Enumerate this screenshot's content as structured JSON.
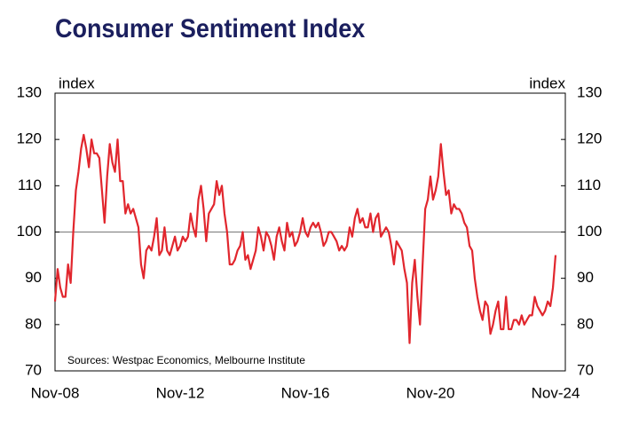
{
  "chart_data": {
    "type": "line",
    "title": "Consumer Sentiment Index",
    "ylabel": "index",
    "y2label": "index",
    "annotation": "Sources: Westpac Economics, Melbourne Institute",
    "categories": [
      "Nov-08",
      null,
      null,
      null,
      null,
      null,
      null,
      null,
      null,
      null,
      null,
      null,
      null,
      null,
      null,
      null,
      null,
      null,
      null,
      null,
      null,
      null,
      null,
      null,
      null,
      null,
      null,
      null,
      null,
      null,
      null,
      null,
      null,
      null,
      null,
      null,
      null,
      null,
      null,
      null,
      null,
      null,
      null,
      null,
      null,
      null,
      null,
      null,
      "Nov-12",
      null,
      null,
      null,
      null,
      null,
      null,
      null,
      null,
      null,
      null,
      null,
      null,
      null,
      null,
      null,
      null,
      null,
      null,
      null,
      null,
      null,
      null,
      null,
      null,
      null,
      null,
      null,
      null,
      null,
      null,
      null,
      null,
      null,
      null,
      null,
      null,
      null,
      null,
      null,
      null,
      null,
      null,
      null,
      null,
      null,
      null,
      null,
      "Nov-16",
      null,
      null,
      null,
      null,
      null,
      null,
      null,
      null,
      null,
      null,
      null,
      null,
      null,
      null,
      null,
      null,
      null,
      null,
      null,
      null,
      null,
      null,
      null,
      null,
      null,
      null,
      null,
      null,
      null,
      null,
      null,
      null,
      null,
      null,
      null,
      null,
      null,
      null,
      null,
      null,
      null,
      null,
      null,
      null,
      null,
      null,
      null,
      "Nov-20",
      null,
      null,
      null,
      null,
      null,
      null,
      null,
      null,
      null,
      null,
      null,
      null,
      null,
      null,
      null,
      null,
      null,
      null,
      null,
      null,
      null,
      null,
      null,
      null,
      null,
      null,
      null,
      null,
      null,
      null,
      null,
      null,
      null,
      null,
      null,
      null,
      null,
      null,
      null,
      null,
      null,
      null,
      null,
      null,
      null,
      null,
      null,
      "Nov-24"
    ],
    "series": [
      {
        "name": "Consumer Sentiment",
        "color": "#e1262d",
        "values": [
          85,
          92,
          88,
          86,
          86,
          93,
          89,
          100,
          109,
          113,
          118,
          121,
          118,
          114,
          120,
          117,
          117,
          116,
          109,
          102,
          112,
          119,
          115,
          113,
          120,
          111,
          111,
          104,
          106,
          104,
          105,
          103,
          101,
          93,
          90,
          96,
          97,
          96,
          99,
          103,
          95,
          96,
          101,
          96,
          95,
          97,
          99,
          96,
          97,
          99,
          98,
          99,
          104,
          101,
          99,
          107,
          110,
          105,
          98,
          104,
          105,
          106,
          111,
          108,
          110,
          104,
          100,
          93,
          93,
          94,
          96,
          97,
          100,
          94,
          95,
          92,
          94,
          96,
          101,
          99,
          96,
          100,
          99,
          97,
          94,
          99,
          101,
          98,
          96,
          102,
          99,
          100,
          97,
          98,
          100,
          103,
          100,
          99,
          101,
          102,
          101,
          102,
          100,
          97,
          98,
          100,
          100,
          99,
          98,
          96,
          97,
          96,
          97,
          101,
          99,
          103,
          105,
          102,
          103,
          101,
          101,
          104,
          100,
          103,
          104,
          99,
          100,
          101,
          100,
          97,
          93,
          98,
          97,
          96,
          92,
          89,
          76,
          89,
          94,
          86,
          80,
          93,
          105,
          107,
          112,
          107,
          109,
          112,
          119,
          113,
          108,
          109,
          104,
          106,
          105,
          105,
          104,
          102,
          101,
          97,
          96,
          90,
          86,
          83,
          81,
          85,
          84,
          78,
          80,
          83,
          85,
          79,
          79,
          86,
          79,
          79,
          81,
          81,
          80,
          82,
          80,
          81,
          82,
          82,
          86,
          84,
          83,
          82,
          83,
          85,
          84,
          88,
          95
        ]
      }
    ],
    "ylim": [
      70,
      130
    ],
    "yticks": [
      70,
      80,
      90,
      100,
      110,
      120,
      130
    ],
    "y2lim": [
      70,
      130
    ],
    "y2ticks": [
      70,
      80,
      90,
      100,
      110,
      120,
      130
    ],
    "reference_line": 100
  }
}
